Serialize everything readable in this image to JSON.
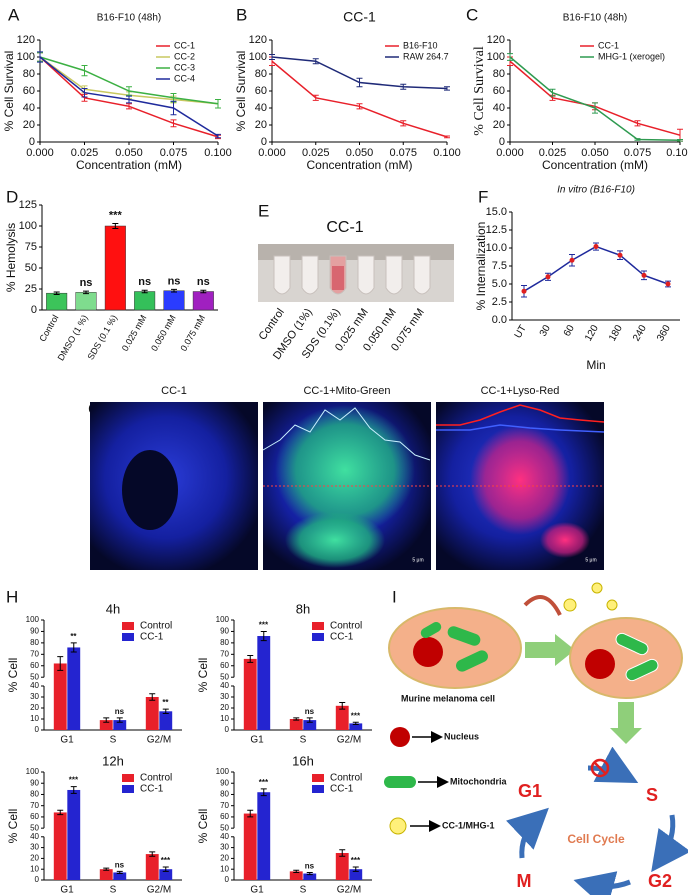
{
  "chart_data": [
    {
      "panel": "A",
      "type": "line",
      "title": "B16-F10 (48h)",
      "xlabel": "Concentration (mM)",
      "ylabel": "% Cell Survival",
      "x": [
        0,
        0.025,
        0.05,
        0.075,
        0.1
      ],
      "xlim": [
        0,
        0.1
      ],
      "xticks": [
        {
          "value": 0,
          "label": "0.000"
        },
        {
          "value": 0.025,
          "label": "0.025"
        },
        {
          "value": 0.05,
          "label": "0.050"
        },
        {
          "value": 0.075,
          "label": "0.075"
        },
        {
          "value": 0.1,
          "label": "0.100"
        }
      ],
      "ylim": [
        0,
        120
      ],
      "yticks": [
        0,
        20,
        40,
        60,
        80,
        100,
        120
      ],
      "legend": "top-right",
      "series": [
        {
          "name": "CC-1",
          "color": "#e8202a",
          "values": [
            100,
            52,
            42,
            22,
            6
          ],
          "errors": [
            5,
            4,
            3,
            4,
            2
          ]
        },
        {
          "name": "CC-2",
          "color": "#c8c860",
          "values": [
            100,
            62,
            55,
            50,
            45
          ],
          "errors": [
            5,
            4,
            4,
            4,
            5
          ]
        },
        {
          "name": "CC-3",
          "color": "#3cb043",
          "values": [
            100,
            84,
            60,
            52,
            45
          ],
          "errors": [
            5,
            6,
            5,
            5,
            5
          ]
        },
        {
          "name": "CC-4",
          "color": "#1f2a9c",
          "values": [
            100,
            58,
            50,
            40,
            7
          ],
          "errors": [
            6,
            5,
            4,
            8,
            2
          ]
        }
      ]
    },
    {
      "panel": "B",
      "type": "line",
      "title": "CC-1",
      "xlabel": "Concentration (mM)",
      "ylabel": "% Cell Survival",
      "x": [
        0,
        0.025,
        0.05,
        0.075,
        0.1
      ],
      "xlim": [
        0,
        0.1
      ],
      "xticks": [
        {
          "value": 0,
          "label": "0.000"
        },
        {
          "value": 0.025,
          "label": "0.025"
        },
        {
          "value": 0.05,
          "label": "0.050"
        },
        {
          "value": 0.075,
          "label": "0.075"
        },
        {
          "value": 0.1,
          "label": "0.100"
        }
      ],
      "ylim": [
        0,
        120
      ],
      "yticks": [
        0,
        20,
        40,
        60,
        80,
        100,
        120
      ],
      "legend": "top-right",
      "series": [
        {
          "name": "B16-F10",
          "color": "#e8202a",
          "values": [
            95,
            52,
            42,
            22,
            6
          ],
          "errors": [
            5,
            3,
            3,
            3,
            1
          ]
        },
        {
          "name": "RAW 264.7",
          "color": "#1f2a78",
          "values": [
            100,
            95,
            70,
            65,
            63
          ],
          "errors": [
            3,
            3,
            5,
            3,
            2
          ]
        }
      ]
    },
    {
      "panel": "C",
      "type": "line",
      "title": "B16-F10 (48h)",
      "xlabel": "Concentration (mM)",
      "ylabel": "% Cell Survival",
      "x": [
        0,
        0.025,
        0.05,
        0.075,
        0.1
      ],
      "xlim": [
        0,
        0.1
      ],
      "xticks": [
        {
          "value": 0,
          "label": "0.000"
        },
        {
          "value": 0.025,
          "label": "0.025"
        },
        {
          "value": 0.05,
          "label": "0.050"
        },
        {
          "value": 0.075,
          "label": "0.075"
        },
        {
          "value": 0.1,
          "label": "0.100"
        }
      ],
      "ylim": [
        0,
        120
      ],
      "yticks": [
        0,
        20,
        40,
        60,
        80,
        100,
        120
      ],
      "legend": "top-right",
      "series": [
        {
          "name": "CC-1",
          "color": "#e8202a",
          "values": [
            95,
            52,
            42,
            22,
            8
          ],
          "errors": [
            5,
            3,
            4,
            3,
            7
          ]
        },
        {
          "name": "MHG-1 (xerogel)",
          "color": "#2e9a50",
          "values": [
            100,
            58,
            40,
            3,
            2
          ],
          "errors": [
            4,
            4,
            6,
            1,
            1
          ]
        }
      ]
    },
    {
      "panel": "D",
      "type": "bar",
      "ylabel": "% Hemolysis",
      "categories": [
        "Control",
        "DMSO (1 %)",
        "SDS (0.1 %)",
        "0.025 mM",
        "0.050 mM",
        "0.075 mM"
      ],
      "values": [
        20,
        21,
        100,
        22,
        23,
        22
      ],
      "errors": [
        1.5,
        1.5,
        3,
        1.5,
        1.5,
        1.5
      ],
      "colors": [
        "#3cc45a",
        "#7fdc8e",
        "#ff1010",
        "#34c05a",
        "#2a3cff",
        "#a020c0"
      ],
      "annotations": [
        null,
        "ns",
        "***",
        "ns",
        "ns",
        "ns"
      ],
      "ylim": [
        0,
        125
      ],
      "yticks": [
        0,
        25,
        50,
        75,
        100,
        125
      ]
    },
    {
      "panel": "F",
      "type": "line",
      "title": "In vitro (B16-F10)",
      "xlabel": "Min",
      "ylabel": "% Internalization",
      "categories": [
        "UT",
        "30",
        "60",
        "120",
        "180",
        "240",
        "360"
      ],
      "ylim": [
        0,
        15
      ],
      "yticks": [
        {
          "value": 0,
          "label": "0.0"
        },
        {
          "value": 2.5,
          "label": "2.5"
        },
        {
          "value": 5,
          "label": "5.0"
        },
        {
          "value": 7.5,
          "label": "7.5"
        },
        {
          "value": 10,
          "label": "10.0"
        },
        {
          "value": 12.5,
          "label": "12.5"
        },
        {
          "value": 15,
          "label": "15.0"
        }
      ],
      "series": [
        {
          "color": "#1f2a9c",
          "values": [
            4,
            6,
            8.3,
            10.2,
            9,
            6.2,
            5
          ],
          "errors": [
            0.8,
            0.5,
            0.8,
            0.5,
            0.6,
            0.6,
            0.4
          ]
        }
      ]
    },
    {
      "panel": "H",
      "type": "grouped-bar",
      "title": "4h",
      "ylabel": "% Cell",
      "categories": [
        "G1",
        "S",
        "G2/M"
      ],
      "legend": "top-right",
      "ylim": [
        0,
        100
      ],
      "axis_break": [
        40,
        50
      ],
      "yticks": [
        0,
        10,
        20,
        30,
        40,
        50,
        60,
        70,
        80,
        90,
        100
      ],
      "series": [
        {
          "name": "Control",
          "color": "#e8202a",
          "values": [
            62,
            9,
            30
          ],
          "errors": [
            6,
            2,
            3
          ]
        },
        {
          "name": "CC-1",
          "color": "#2424d0",
          "values": [
            76,
            9,
            17
          ],
          "errors": [
            4,
            2,
            2
          ]
        }
      ],
      "annotations": [
        "**",
        "ns",
        "**"
      ]
    },
    {
      "type": "grouped-bar",
      "title": "8h",
      "ylabel": "% Cell",
      "categories": [
        "G1",
        "S",
        "G2/M"
      ],
      "legend": "top-right",
      "ylim": [
        0,
        100
      ],
      "axis_break": [
        40,
        50
      ],
      "yticks": [
        0,
        10,
        20,
        30,
        40,
        50,
        60,
        70,
        80,
        90,
        100
      ],
      "series": [
        {
          "name": "Control",
          "color": "#e8202a",
          "values": [
            66,
            10,
            22
          ],
          "errors": [
            3,
            1,
            3
          ]
        },
        {
          "name": "CC-1",
          "color": "#2424d0",
          "values": [
            86,
            9,
            6
          ],
          "errors": [
            4,
            2,
            1
          ]
        }
      ],
      "annotations": [
        "***",
        "ns",
        "***"
      ]
    },
    {
      "type": "grouped-bar",
      "title": "12h",
      "ylabel": "% Cell",
      "categories": [
        "G1",
        "S",
        "G2/M"
      ],
      "legend": "top-right",
      "ylim": [
        0,
        100
      ],
      "axis_break": [
        40,
        50
      ],
      "yticks": [
        0,
        10,
        20,
        30,
        40,
        50,
        60,
        70,
        80,
        90,
        100
      ],
      "series": [
        {
          "name": "Control",
          "color": "#e8202a",
          "values": [
            64,
            10,
            24
          ],
          "errors": [
            2,
            1,
            2
          ]
        },
        {
          "name": "CC-1",
          "color": "#2424d0",
          "values": [
            84,
            7,
            10
          ],
          "errors": [
            3,
            1,
            2
          ]
        }
      ],
      "annotations": [
        "***",
        "ns",
        "***"
      ]
    },
    {
      "type": "grouped-bar",
      "title": "16h",
      "ylabel": "% Cell",
      "categories": [
        "G1",
        "S",
        "G2/M"
      ],
      "legend": "top-right",
      "ylim": [
        0,
        100
      ],
      "axis_break": [
        40,
        50
      ],
      "yticks": [
        0,
        10,
        20,
        30,
        40,
        50,
        60,
        70,
        80,
        90,
        100
      ],
      "series": [
        {
          "name": "Control",
          "color": "#e8202a",
          "values": [
            63,
            8,
            25
          ],
          "errors": [
            3,
            1,
            3
          ]
        },
        {
          "name": "CC-1",
          "color": "#2424d0",
          "values": [
            82,
            6,
            10
          ],
          "errors": [
            3,
            1,
            2
          ]
        }
      ],
      "annotations": [
        "***",
        "ns",
        "***"
      ]
    }
  ],
  "photo": {
    "panel": "E",
    "title": "CC-1",
    "labels": [
      "Control",
      "DMSO (1%)",
      "SDS (0.1%)",
      "0.025 mM",
      "0.050 mM",
      "0.075 mM"
    ]
  },
  "microscopy": {
    "panel": "G",
    "titles": [
      "CC-1",
      "CC-1+Mito-Green",
      "CC-1+Lyso-Red"
    ],
    "scale": "5 μm"
  },
  "diagram": {
    "panel": "I",
    "cell": "Murine melanoma cell",
    "legend": [
      "Nucleus",
      "Mitochondria",
      "CC-1/MHG-1"
    ],
    "phases": [
      "G1",
      "S",
      "G2",
      "M"
    ],
    "center": "Cell Cycle"
  }
}
